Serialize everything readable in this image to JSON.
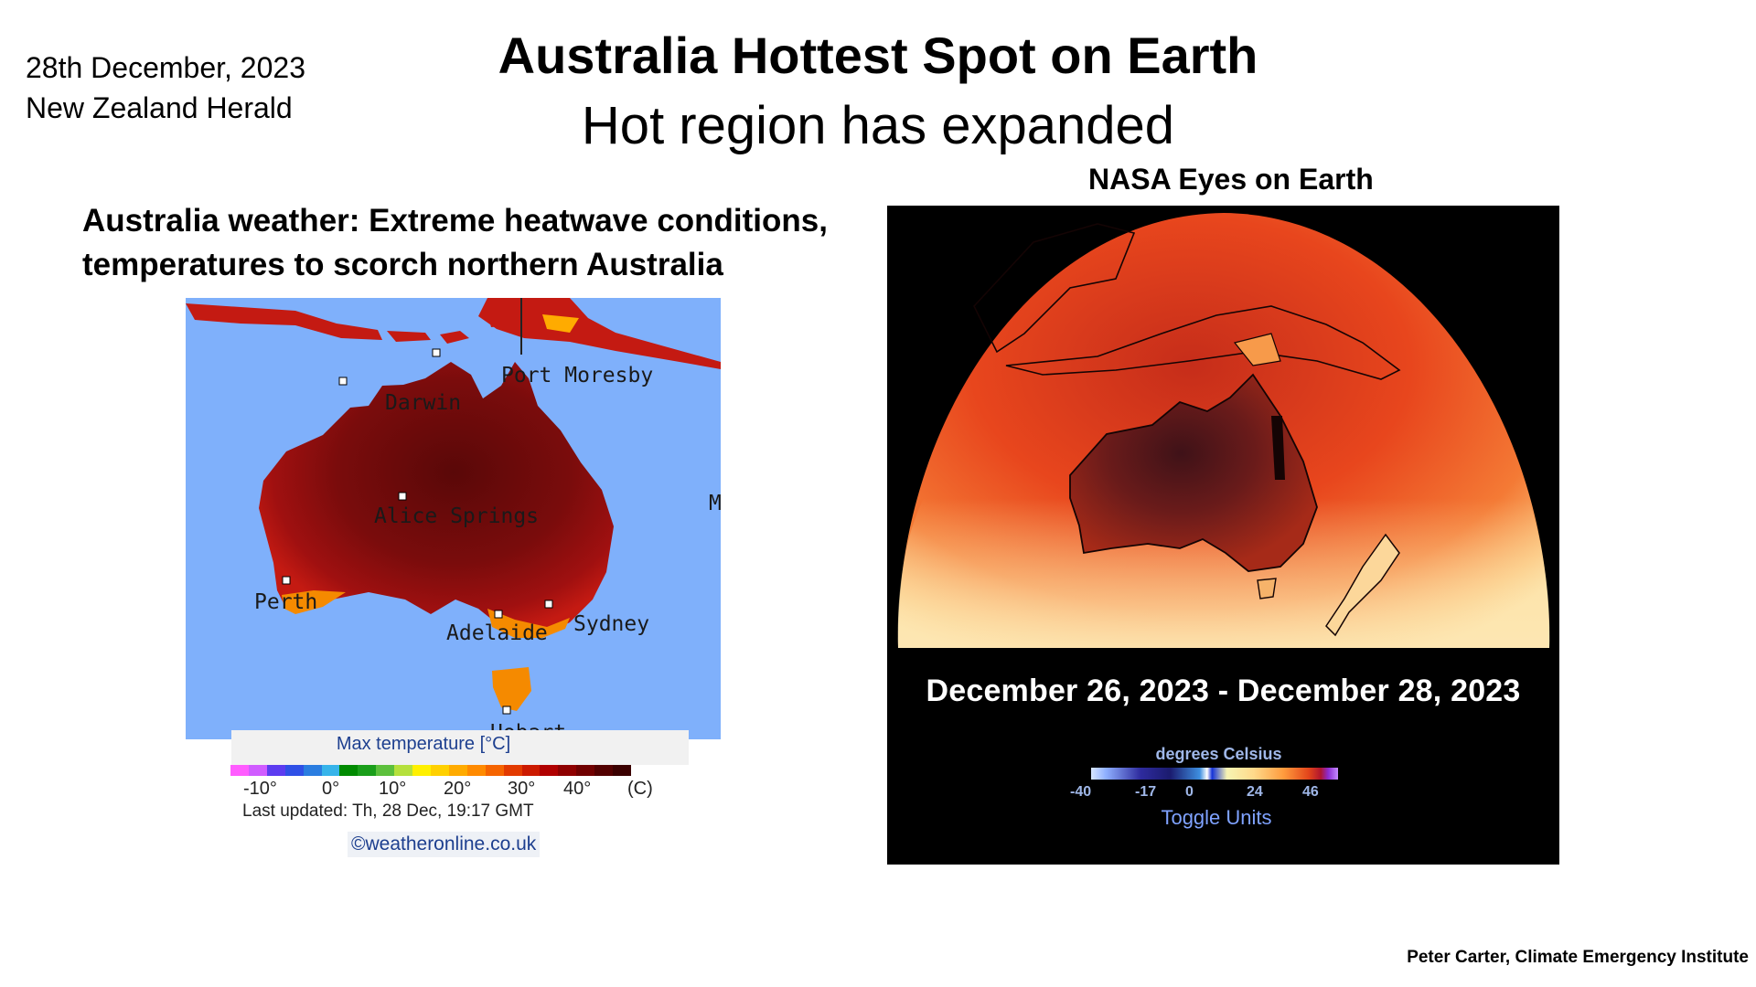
{
  "header": {
    "date": "28th December, 2023",
    "source": "New Zealand Herald",
    "title": "Australia Hottest Spot on Earth",
    "subtitle": "Hot region has expanded"
  },
  "left": {
    "headline_line1": "Australia weather: Extreme heatwave conditions,",
    "headline_line2": "temperatures to scorch northern Australia",
    "cities": {
      "port_moresby": "Port Moresby",
      "darwin": "Darwin",
      "alice_springs": "Alice Springs",
      "perth": "Perth",
      "adelaide": "Adelaide",
      "sydney": "Sydney",
      "hobart": "Hobart",
      "edge_letter": "M"
    },
    "legend_title": "Max temperature [°C]",
    "legend_ticks": [
      "-10°",
      "0°",
      "10°",
      "20°",
      "30°",
      "40°",
      "(C)"
    ],
    "legend_colors": [
      "#ff5cff",
      "#d05cff",
      "#5c3cf0",
      "#2f50e6",
      "#2a7de0",
      "#37b4ea",
      "#008a00",
      "#1a9e1a",
      "#5cc03c",
      "#b5e03c",
      "#fff000",
      "#ffd000",
      "#ffab00",
      "#ff8a00",
      "#f56400",
      "#e23a00",
      "#cc1a00",
      "#b00000",
      "#8e0000",
      "#700000",
      "#520000",
      "#3a0000"
    ],
    "last_updated": "Last updated: Th, 28 Dec, 19:17 GMT",
    "site": "©weatheronline.co.uk"
  },
  "right": {
    "label": "NASA Eyes on Earth",
    "date_range": "December 26, 2023 - December 28, 2023",
    "units_label": "degrees Celsius",
    "scale_ticks": [
      "-40",
      "-17",
      "0",
      "24",
      "46"
    ],
    "toggle_units": "Toggle Units"
  },
  "footer": {
    "credit": "Peter Carter, Climate Emergency Institute"
  }
}
